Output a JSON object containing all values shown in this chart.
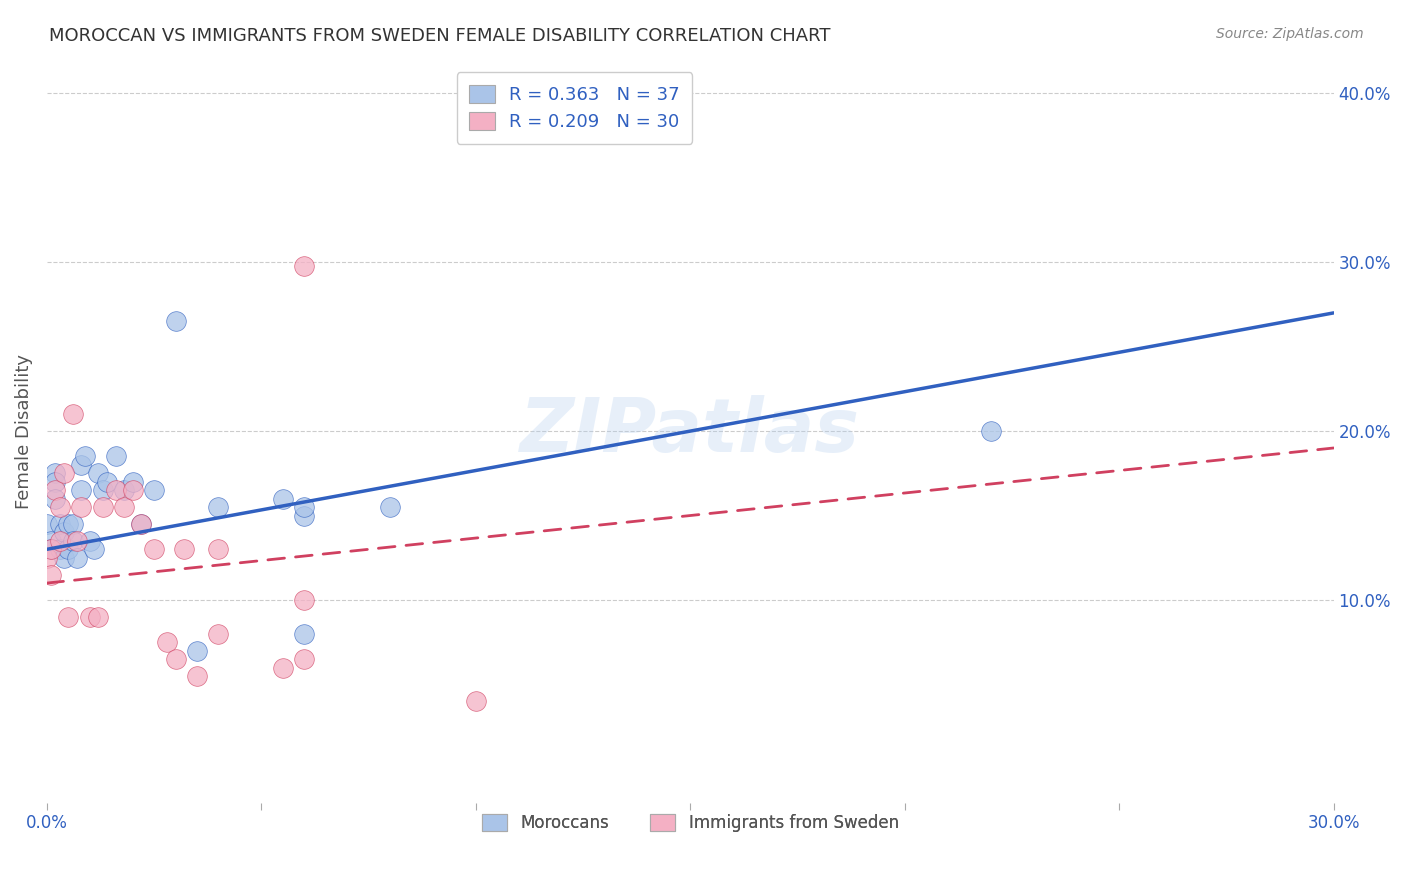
{
  "title": "MOROCCAN VS IMMIGRANTS FROM SWEDEN FEMALE DISABILITY CORRELATION CHART",
  "source": "Source: ZipAtlas.com",
  "ylabel_label": "Female Disability",
  "xlim": [
    0.0,
    0.3
  ],
  "ylim": [
    -0.02,
    0.42
  ],
  "x_ticks": [
    0.0,
    0.05,
    0.1,
    0.15,
    0.2,
    0.25,
    0.3
  ],
  "x_tick_labels": [
    "0.0%",
    "",
    "",
    "",
    "",
    "",
    "30.0%"
  ],
  "y_ticks": [
    0.1,
    0.2,
    0.3,
    0.4
  ],
  "y_tick_labels": [
    "10.0%",
    "20.0%",
    "30.0%",
    "40.0%"
  ],
  "legend_label1": "R = 0.363   N = 37",
  "legend_label2": "R = 0.209   N = 30",
  "legend_bottom_label1": "Moroccans",
  "legend_bottom_label2": "Immigrants from Sweden",
  "color_blue": "#aac4e8",
  "color_pink": "#f4b0c4",
  "line_color_blue": "#3060c0",
  "line_color_pink": "#d04060",
  "blue_points_x": [
    0.0,
    0.001,
    0.001,
    0.002,
    0.002,
    0.002,
    0.003,
    0.003,
    0.004,
    0.004,
    0.005,
    0.005,
    0.006,
    0.006,
    0.007,
    0.008,
    0.008,
    0.009,
    0.01,
    0.011,
    0.012,
    0.013,
    0.014,
    0.016,
    0.018,
    0.02,
    0.022,
    0.025,
    0.03,
    0.035,
    0.04,
    0.055,
    0.08,
    0.22,
    0.06,
    0.06,
    0.06
  ],
  "blue_points_y": [
    0.145,
    0.135,
    0.13,
    0.175,
    0.17,
    0.16,
    0.145,
    0.13,
    0.14,
    0.125,
    0.145,
    0.13,
    0.145,
    0.135,
    0.125,
    0.165,
    0.18,
    0.185,
    0.135,
    0.13,
    0.175,
    0.165,
    0.17,
    0.185,
    0.165,
    0.17,
    0.145,
    0.165,
    0.265,
    0.07,
    0.155,
    0.16,
    0.155,
    0.2,
    0.08,
    0.15,
    0.155
  ],
  "pink_points_x": [
    0.0,
    0.001,
    0.001,
    0.002,
    0.003,
    0.003,
    0.004,
    0.005,
    0.006,
    0.007,
    0.008,
    0.01,
    0.012,
    0.013,
    0.016,
    0.018,
    0.02,
    0.022,
    0.025,
    0.028,
    0.03,
    0.032,
    0.035,
    0.04,
    0.04,
    0.055,
    0.06,
    0.06,
    0.1,
    0.06
  ],
  "pink_points_y": [
    0.125,
    0.13,
    0.115,
    0.165,
    0.155,
    0.135,
    0.175,
    0.09,
    0.21,
    0.135,
    0.155,
    0.09,
    0.09,
    0.155,
    0.165,
    0.155,
    0.165,
    0.145,
    0.13,
    0.075,
    0.065,
    0.13,
    0.055,
    0.08,
    0.13,
    0.06,
    0.298,
    0.065,
    0.04,
    0.1
  ],
  "watermark": "ZIPatlas",
  "background_color": "#ffffff",
  "grid_color": "#cccccc",
  "title_color": "#333333",
  "axis_label_color": "#555555",
  "tick_color": "#3060c0",
  "source_color": "#888888"
}
